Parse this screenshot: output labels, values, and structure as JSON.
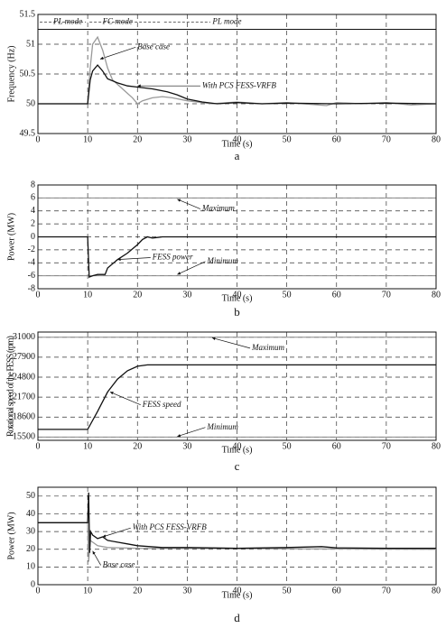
{
  "chart_data": [
    {
      "type": "line",
      "caption": "a",
      "x_label": "Time (s)",
      "y_label": "Frequency (Hz)",
      "xlim": [
        0,
        80
      ],
      "xticks": [
        0,
        10,
        20,
        30,
        40,
        50,
        60,
        70,
        80
      ],
      "ylim": [
        49.5,
        51.5
      ],
      "yticks": [
        49.5,
        50,
        50.5,
        51,
        51.5
      ],
      "grid": true,
      "reference_lines": [
        51.25
      ],
      "annotations": [
        "PL mode",
        "FC mode",
        "PL mode",
        "Base case",
        "With PCS FESS-VRFB"
      ],
      "series": [
        {
          "name": "Base case",
          "color": "#999999",
          "x": [
            0,
            10,
            10.5,
            11,
            12,
            13,
            14,
            15,
            17,
            19,
            20,
            21,
            23,
            25,
            27,
            30,
            35,
            40,
            45,
            50,
            55,
            58,
            60,
            65,
            70,
            75,
            80
          ],
          "values": [
            50,
            50,
            50.6,
            51.0,
            51.12,
            50.9,
            50.6,
            50.4,
            50.25,
            50.1,
            50.0,
            50.05,
            50.1,
            50.12,
            50.1,
            50.05,
            50.0,
            50.03,
            50.0,
            50.02,
            49.99,
            49.97,
            50.02,
            50.0,
            50.02,
            49.98,
            50.0
          ]
        },
        {
          "name": "With PCS FESS-VRFB",
          "color": "#111111",
          "x": [
            0,
            10,
            10.5,
            11,
            12,
            13,
            14,
            16,
            18,
            20,
            23,
            26,
            28,
            30,
            33,
            36,
            40,
            45,
            50,
            60,
            70,
            80
          ],
          "values": [
            50,
            50,
            50.4,
            50.55,
            50.65,
            50.55,
            50.42,
            50.35,
            50.3,
            50.28,
            50.25,
            50.2,
            50.15,
            50.08,
            50.03,
            50.0,
            50.02,
            50.0,
            50.01,
            50.0,
            50.01,
            50.0
          ]
        }
      ]
    },
    {
      "type": "line",
      "caption": "b",
      "x_label": "Time (s)",
      "y_label": "Power (MW)",
      "xlim": [
        0,
        80
      ],
      "xticks": [
        0,
        10,
        20,
        30,
        40,
        50,
        60,
        70,
        80
      ],
      "ylim": [
        -8,
        8
      ],
      "yticks": [
        -8,
        -6,
        -4,
        -2,
        0,
        2,
        4,
        6,
        8
      ],
      "grid": true,
      "reference_lines": [
        6,
        -6
      ],
      "annotations": [
        "Maximum",
        "Minimum",
        "FESS power"
      ],
      "series": [
        {
          "name": "FESS power",
          "color": "#111111",
          "x": [
            0,
            10,
            10.3,
            11,
            12,
            13.5,
            14,
            16,
            18,
            20,
            21,
            22,
            23,
            24,
            25,
            80
          ],
          "values": [
            0,
            0,
            -6.2,
            -6.0,
            -5.8,
            -5.8,
            -4.8,
            -3.5,
            -2.5,
            -1.2,
            -0.4,
            0,
            -0.2,
            -0.1,
            0,
            0
          ]
        }
      ]
    },
    {
      "type": "line",
      "caption": "c",
      "x_label": "Time (s)",
      "y_label": "Rotational speed of the FESS (rpm)",
      "xlim": [
        0,
        80
      ],
      "xticks": [
        0,
        10,
        20,
        30,
        40,
        50,
        60,
        70,
        80
      ],
      "ylim": [
        15000,
        31800
      ],
      "yticks": [
        15500,
        18600,
        21700,
        24800,
        27900,
        31000
      ],
      "grid": true,
      "reference_lines": [
        31000,
        15500
      ],
      "annotations": [
        "Maximum",
        "Minimum",
        "FESS speed"
      ],
      "series": [
        {
          "name": "FESS speed",
          "color": "#111111",
          "x": [
            0,
            10,
            12,
            14,
            16,
            18,
            20,
            22,
            80
          ],
          "values": [
            16700,
            16700,
            19500,
            22500,
            24500,
            25800,
            26500,
            26700,
            26700
          ]
        }
      ]
    },
    {
      "type": "line",
      "caption": "d",
      "x_label": "Time (s)",
      "y_label": "Power (MW)",
      "xlim": [
        0,
        80
      ],
      "xticks": [
        0,
        10,
        20,
        30,
        40,
        50,
        60,
        70,
        80
      ],
      "ylim": [
        0,
        55
      ],
      "yticks": [
        0,
        10,
        20,
        30,
        40,
        50
      ],
      "grid": true,
      "reference_lines": [],
      "annotations": [
        "With PCS FESS-VRFB",
        "Base case"
      ],
      "series": [
        {
          "name": "Base case",
          "color": "#999999",
          "x": [
            0,
            10,
            10.2,
            10.5,
            12,
            14,
            20,
            80
          ],
          "values": [
            35,
            35,
            13,
            25,
            22,
            21,
            20.5,
            20
          ]
        },
        {
          "name": "With PCS FESS-VRFB",
          "color": "#111111",
          "x": [
            0,
            10,
            10.2,
            10.4,
            10.6,
            11,
            12,
            13,
            14,
            16,
            18,
            20,
            25,
            30,
            40,
            50,
            57,
            60,
            70,
            80
          ],
          "values": [
            35,
            35,
            52,
            18,
            30,
            28,
            26,
            27,
            25,
            24,
            23,
            22,
            21,
            21,
            20.5,
            21,
            21.5,
            20.8,
            20.5,
            20.5
          ]
        }
      ]
    }
  ]
}
